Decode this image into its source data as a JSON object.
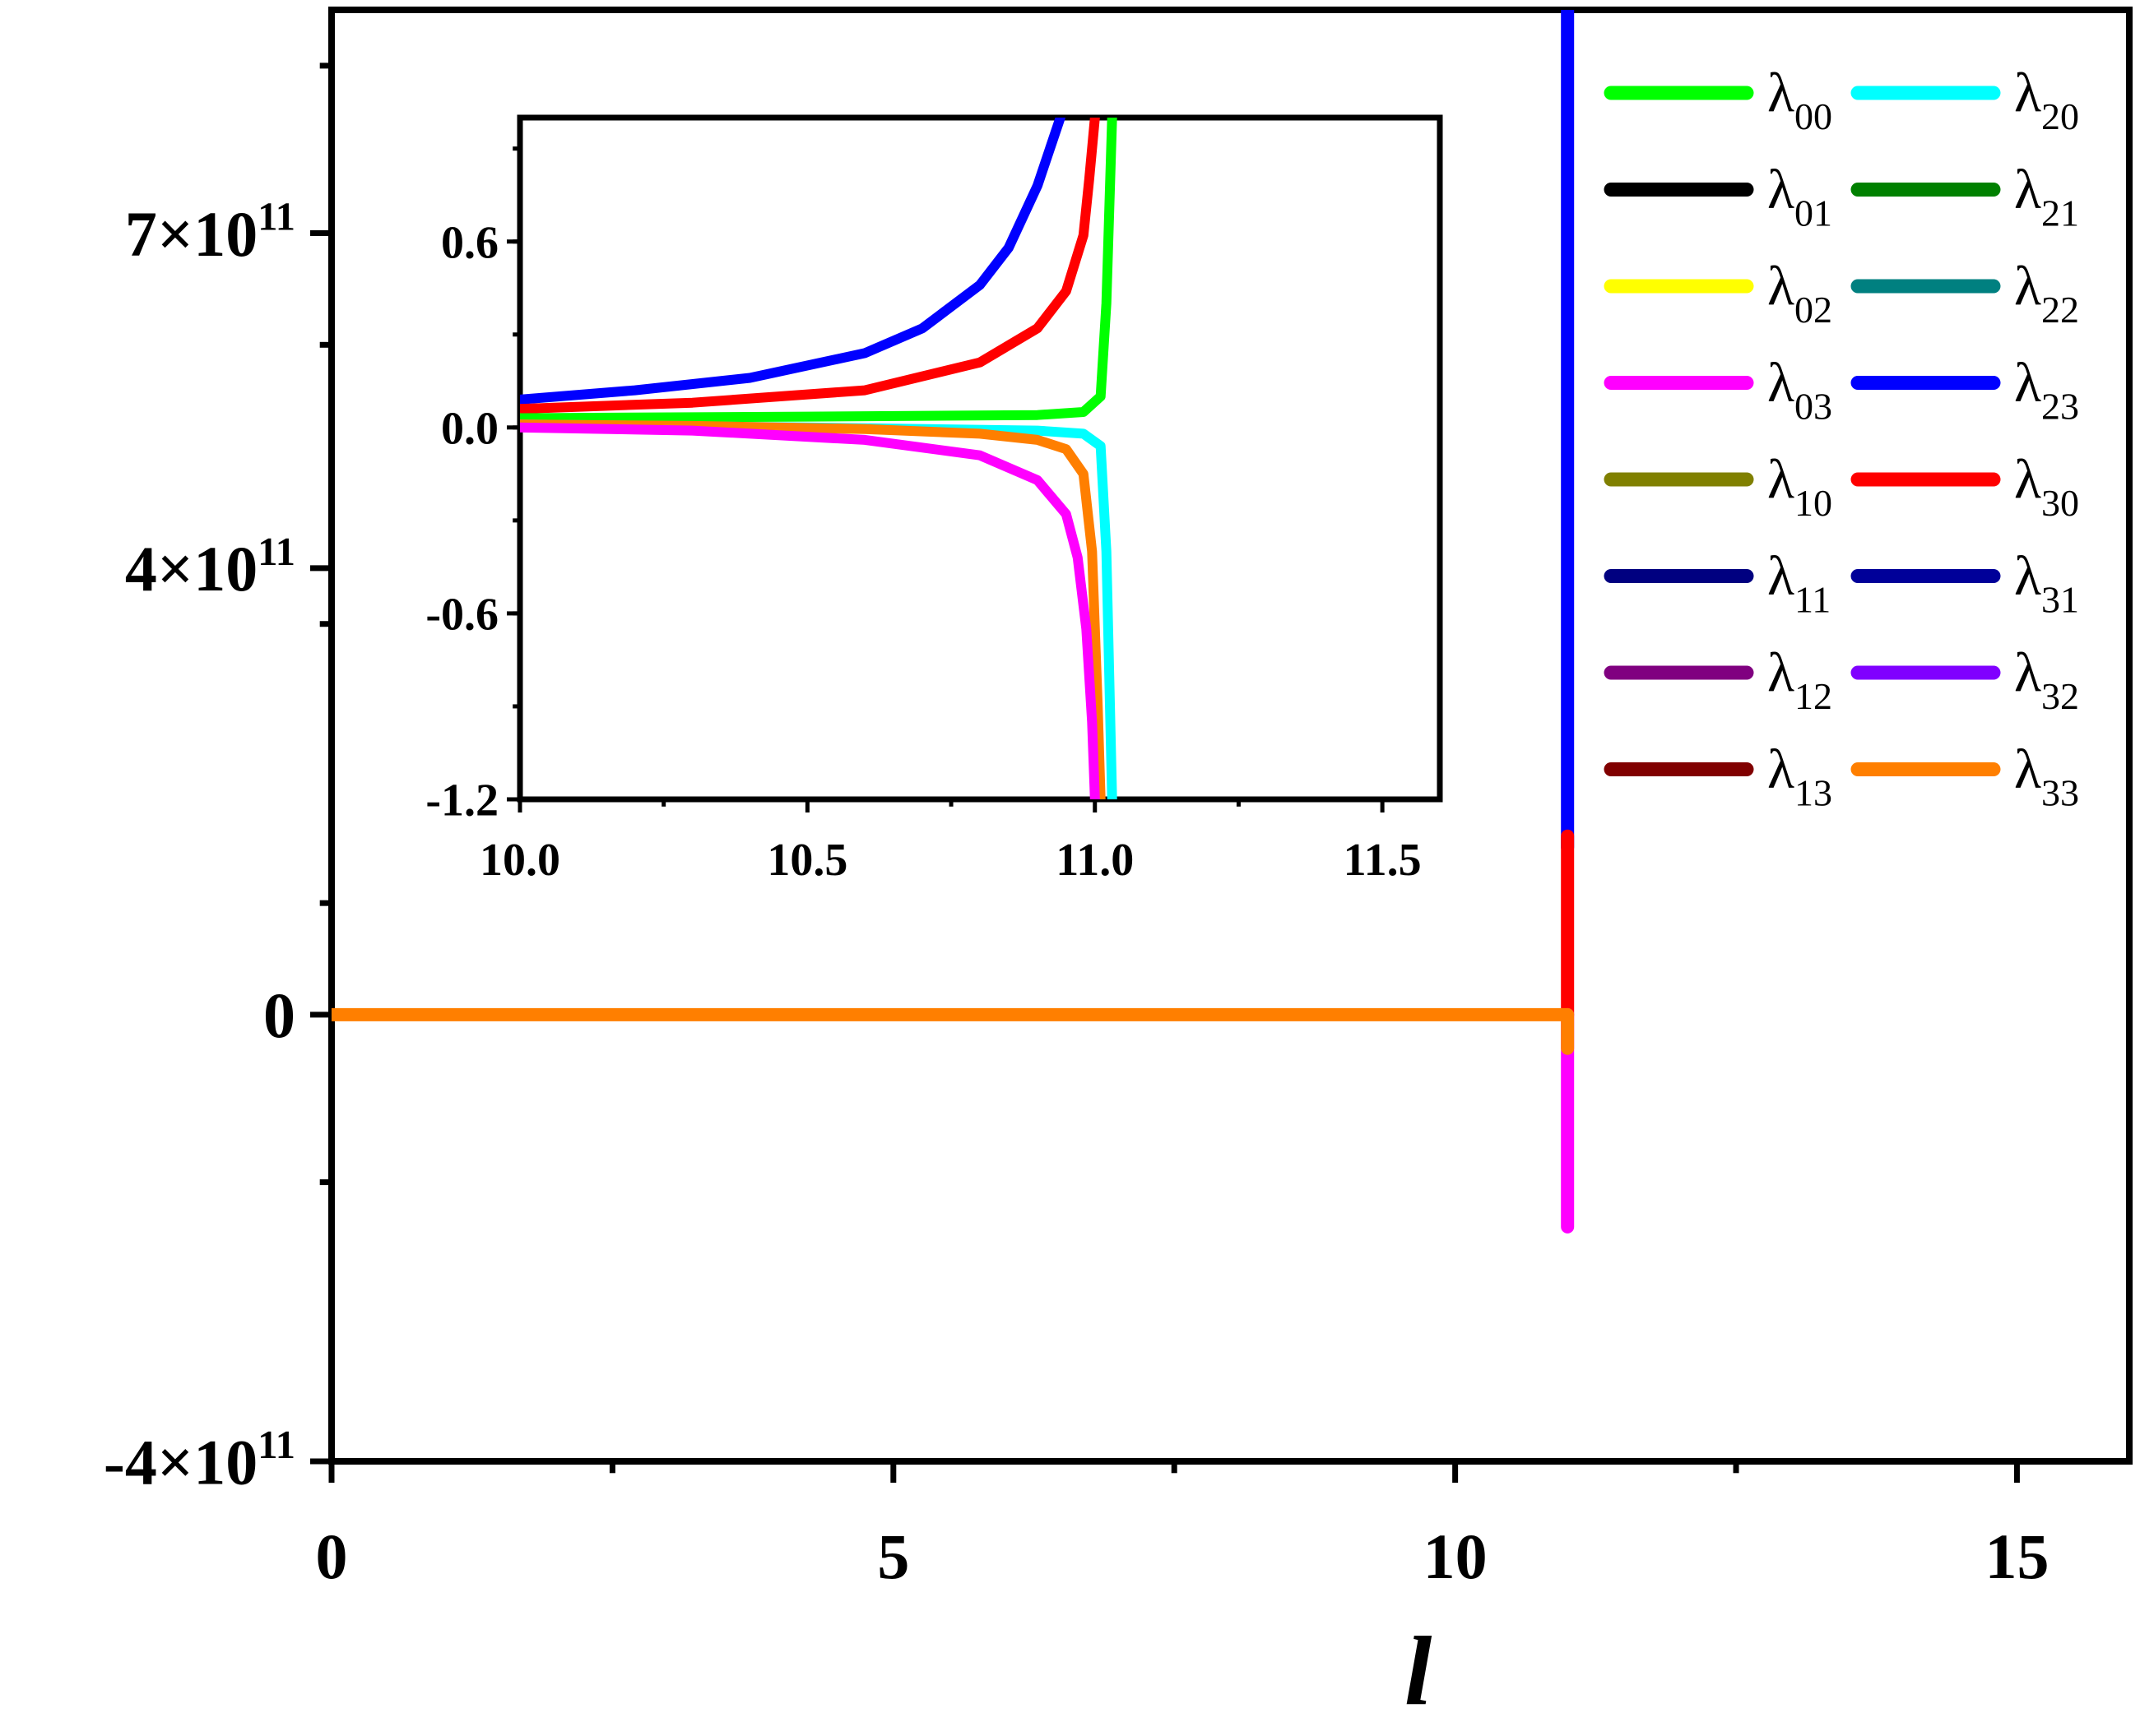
{
  "chart_data": [
    {
      "type": "line",
      "role": "main",
      "title": "",
      "xlabel": "l",
      "ylabel": "",
      "xlim": [
        0,
        16
      ],
      "ylim": [
        -400000000000.0,
        900000000000.0
      ],
      "x_ticks": [
        0,
        5,
        10,
        15
      ],
      "x_tick_labels": [
        "0",
        "5",
        "10",
        "15"
      ],
      "y_ticks": [
        -400000000000.0,
        0,
        400000000000.0,
        700000000000.0
      ],
      "y_tick_labels": [
        {
          "mantissa": "-4×10",
          "exp": "11"
        },
        {
          "mantissa": "0",
          "exp": ""
        },
        {
          "mantissa": "4×10",
          "exp": "11"
        },
        {
          "mantissa": "7×10",
          "exp": "11"
        }
      ],
      "series": [
        {
          "name": "λ23",
          "color": "#0000ff",
          "x": [
            11,
            11
          ],
          "y": [
            150000000000.0,
            920000000000.0
          ]
        },
        {
          "name": "λ30",
          "color": "#ff0000",
          "x": [
            11,
            11
          ],
          "y": [
            0,
            160000000000.0
          ]
        },
        {
          "name": "λ03",
          "color": "#ff00ff",
          "x": [
            11,
            11
          ],
          "y": [
            -190000000000.0,
            0
          ]
        },
        {
          "name": "λ33",
          "color": "#ff7f00",
          "x": [
            0,
            11,
            11
          ],
          "y": [
            0,
            0,
            -30000000000.0
          ]
        }
      ]
    },
    {
      "type": "line",
      "role": "inset",
      "title": "",
      "xlabel": "",
      "ylabel": "",
      "xlim": [
        10.0,
        11.6
      ],
      "ylim": [
        -1.2,
        1.0
      ],
      "x_ticks": [
        10.0,
        10.5,
        11.0,
        11.5
      ],
      "x_tick_labels": [
        "10.0",
        "10.5",
        "11.0",
        "11.5"
      ],
      "y_ticks": [
        -1.2,
        -0.6,
        0.0,
        0.6
      ],
      "y_tick_labels": [
        "-1.2",
        "-0.6",
        "0.0",
        "0.6"
      ],
      "series": [
        {
          "name": "λ23",
          "color": "#0000ff",
          "x": [
            10.0,
            10.2,
            10.4,
            10.6,
            10.7,
            10.8,
            10.85,
            10.9,
            10.94
          ],
          "y": [
            0.09,
            0.12,
            0.16,
            0.24,
            0.32,
            0.46,
            0.58,
            0.78,
            1.0
          ]
        },
        {
          "name": "λ30",
          "color": "#ff0000",
          "x": [
            10.0,
            10.3,
            10.6,
            10.8,
            10.9,
            10.95,
            10.98,
            10.99,
            11.0
          ],
          "y": [
            0.06,
            0.08,
            0.12,
            0.21,
            0.32,
            0.44,
            0.62,
            0.8,
            1.0
          ]
        },
        {
          "name": "λ00",
          "color": "#00ff00",
          "x": [
            10.0,
            10.5,
            10.9,
            10.98,
            11.01,
            11.02,
            11.025,
            11.03
          ],
          "y": [
            0.03,
            0.035,
            0.04,
            0.05,
            0.1,
            0.4,
            0.7,
            1.0
          ]
        },
        {
          "name": "λ20",
          "color": "#00ffff",
          "x": [
            10.0,
            10.5,
            10.9,
            10.98,
            11.01,
            11.02,
            11.025,
            11.03
          ],
          "y": [
            0.01,
            0.0,
            -0.01,
            -0.02,
            -0.06,
            -0.4,
            -0.8,
            -1.2
          ]
        },
        {
          "name": "λ33",
          "color": "#ff7f00",
          "x": [
            10.0,
            10.3,
            10.6,
            10.8,
            10.9,
            10.95,
            10.98,
            10.995,
            11.005,
            11.01
          ],
          "y": [
            0.01,
            0.005,
            -0.005,
            -0.02,
            -0.04,
            -0.07,
            -0.15,
            -0.4,
            -0.9,
            -1.2
          ]
        },
        {
          "name": "λ03",
          "color": "#ff00ff",
          "x": [
            10.0,
            10.3,
            10.6,
            10.8,
            10.9,
            10.95,
            10.97,
            10.985,
            10.995,
            11.0
          ],
          "y": [
            0.0,
            -0.01,
            -0.04,
            -0.09,
            -0.17,
            -0.28,
            -0.42,
            -0.65,
            -0.95,
            -1.2
          ]
        }
      ]
    }
  ],
  "legend": {
    "placement": "right",
    "entries": [
      {
        "base": "λ",
        "sub": "00",
        "color": "#00ff00"
      },
      {
        "base": "λ",
        "sub": "01",
        "color": "#000000"
      },
      {
        "base": "λ",
        "sub": "02",
        "color": "#ffff00"
      },
      {
        "base": "λ",
        "sub": "03",
        "color": "#ff00ff"
      },
      {
        "base": "λ",
        "sub": "10",
        "color": "#808000"
      },
      {
        "base": "λ",
        "sub": "11",
        "color": "#000080"
      },
      {
        "base": "λ",
        "sub": "12",
        "color": "#800080"
      },
      {
        "base": "λ",
        "sub": "13",
        "color": "#800000"
      },
      {
        "base": "λ",
        "sub": "20",
        "color": "#00ffff"
      },
      {
        "base": "λ",
        "sub": "21",
        "color": "#008000"
      },
      {
        "base": "λ",
        "sub": "22",
        "color": "#008080"
      },
      {
        "base": "λ",
        "sub": "23",
        "color": "#0000ff"
      },
      {
        "base": "λ",
        "sub": "30",
        "color": "#ff0000"
      },
      {
        "base": "λ",
        "sub": "31",
        "color": "#000099"
      },
      {
        "base": "λ",
        "sub": "32",
        "color": "#8000ff"
      },
      {
        "base": "λ",
        "sub": "33",
        "color": "#ff7f00"
      }
    ]
  }
}
